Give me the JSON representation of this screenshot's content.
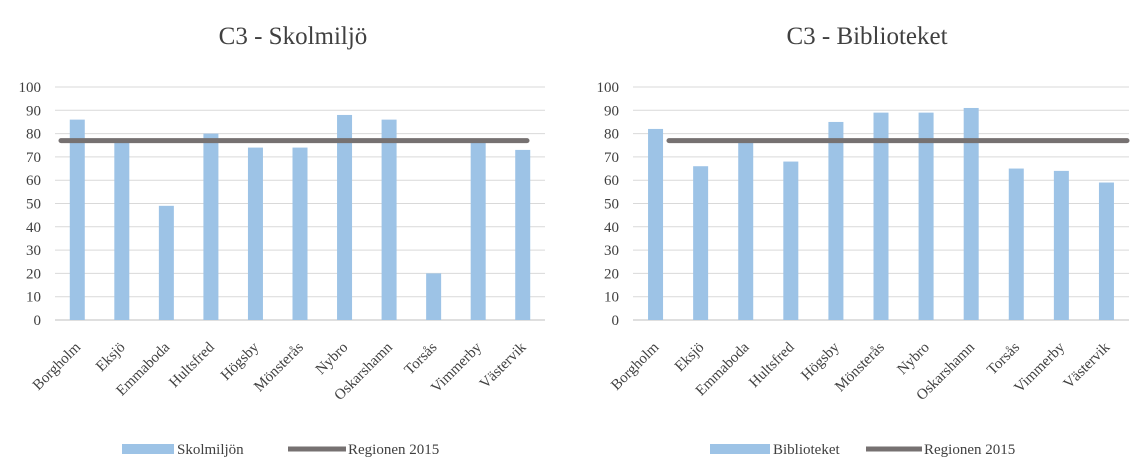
{
  "chart_data": [
    {
      "type": "bar",
      "title": "C3 - Skolmiljö",
      "categories": [
        "Borgholm",
        "Eksjö",
        "Emmaboda",
        "Hultsfred",
        "Högsby",
        "Mönsterås",
        "Nybro",
        "Oskarshamn",
        "Torsås",
        "Vimmerby",
        "Västervik"
      ],
      "series": [
        {
          "name": "Skolmiljön",
          "type": "bar",
          "color": "#9dc3e6",
          "values": [
            86,
            77,
            49,
            80,
            74,
            74,
            88,
            86,
            20,
            77,
            73
          ]
        },
        {
          "name": "Regionen 2015",
          "type": "line",
          "color": "#767171",
          "values": [
            77,
            77,
            77,
            77,
            77,
            77,
            77,
            77,
            77,
            77,
            77
          ]
        }
      ],
      "ylim": [
        0,
        100
      ],
      "yticks": [
        0,
        10,
        20,
        30,
        40,
        50,
        60,
        70,
        80,
        90,
        100
      ],
      "grid": true,
      "legend": "bottom",
      "xlabel": "",
      "ylabel": ""
    },
    {
      "type": "bar",
      "title": "C3 - Biblioteket",
      "categories": [
        "Borgholm",
        "Eksjö",
        "Emmaboda",
        "Hultsfred",
        "Högsby",
        "Mönsterås",
        "Nybro",
        "Oskarshamn",
        "Torsås",
        "Vimmerby",
        "Västervik"
      ],
      "series": [
        {
          "name": "Biblioteket",
          "type": "bar",
          "color": "#9dc3e6",
          "values": [
            82,
            66,
            77,
            68,
            85,
            89,
            89,
            91,
            65,
            64,
            59
          ]
        },
        {
          "name": "Regionen 2015",
          "type": "line",
          "color": "#767171",
          "values": [
            77,
            77,
            77,
            77,
            77,
            77,
            77,
            77,
            77,
            77,
            77
          ]
        }
      ],
      "ylim": [
        0,
        100
      ],
      "yticks": [
        0,
        10,
        20,
        30,
        40,
        50,
        60,
        70,
        80,
        90,
        100
      ],
      "grid": true,
      "legend": "bottom",
      "xlabel": "",
      "ylabel": ""
    }
  ]
}
